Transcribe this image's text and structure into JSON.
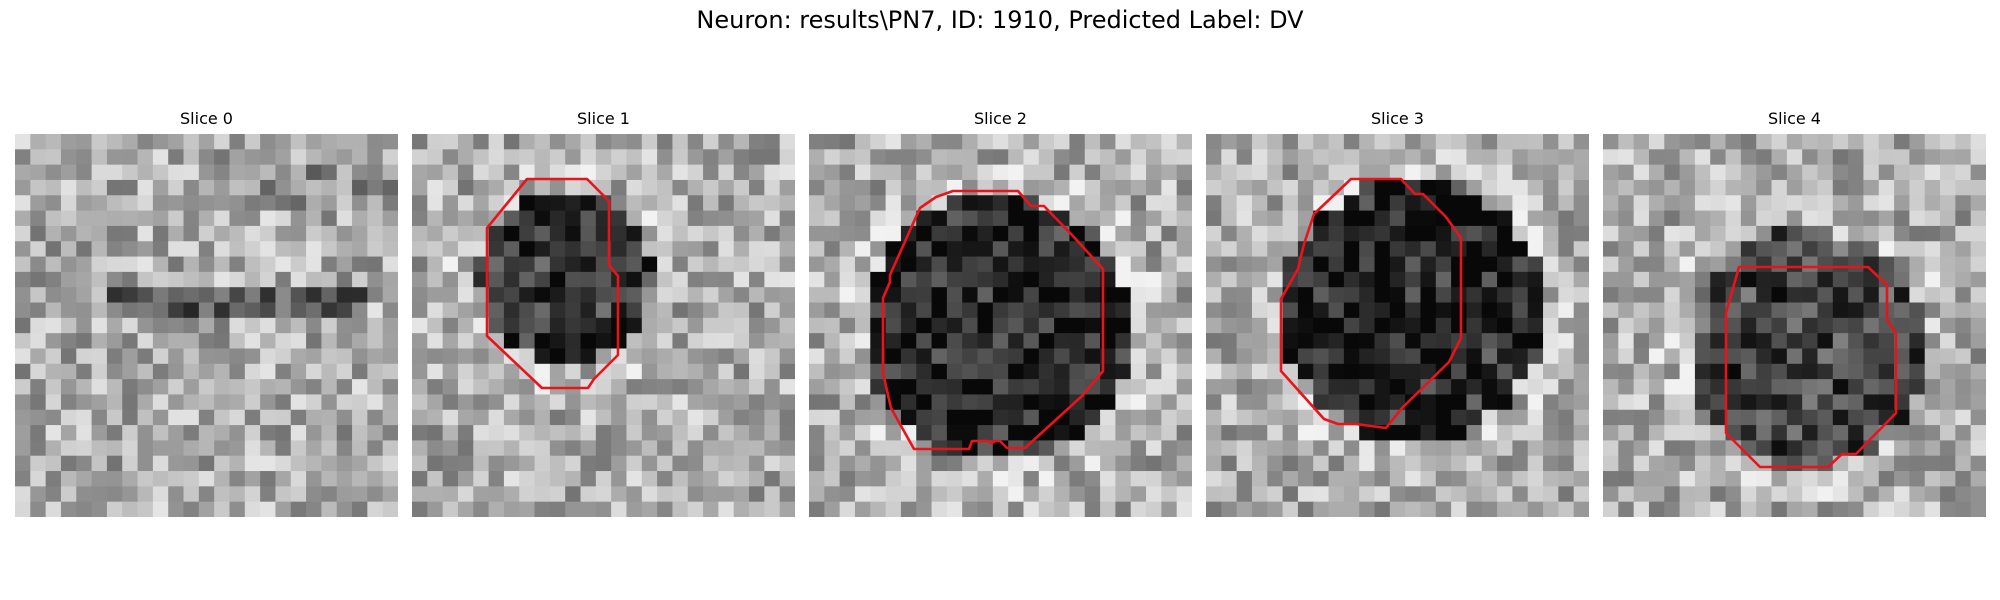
{
  "figure": {
    "title": "Neuron: results\\PN7, ID: 1910, Predicted Label: DV",
    "panels": [
      {
        "title": "Slice 0",
        "has_outline": false
      },
      {
        "title": "Slice 1",
        "has_outline": true
      },
      {
        "title": "Slice 2",
        "has_outline": true
      },
      {
        "title": "Slice 3",
        "has_outline": true
      },
      {
        "title": "Slice 4",
        "has_outline": true
      }
    ],
    "colormap": "gray",
    "outline_color": "#e8141c"
  }
}
